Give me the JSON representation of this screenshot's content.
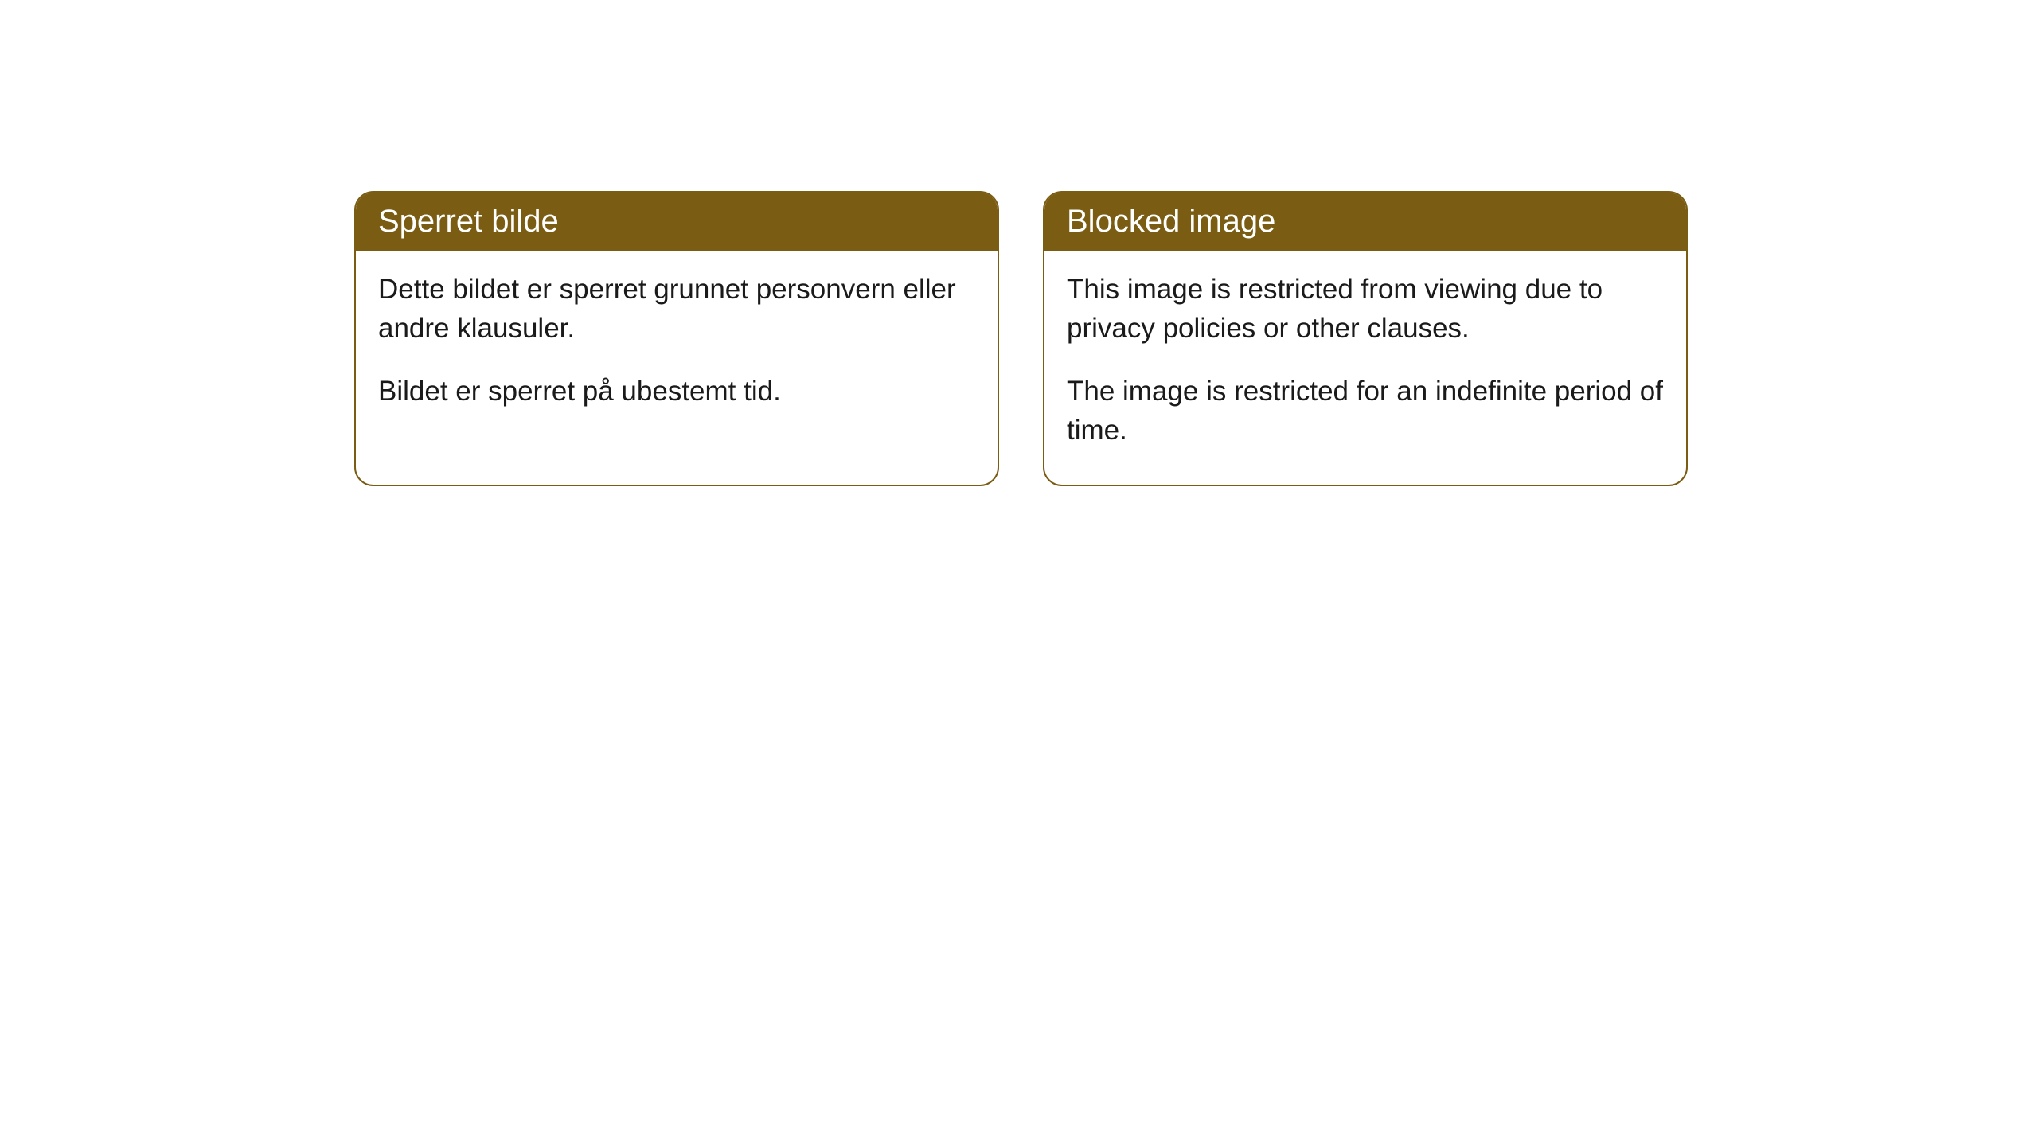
{
  "cards": [
    {
      "title": "Sperret bilde",
      "paragraph1": "Dette bildet er sperret grunnet personvern eller andre klausuler.",
      "paragraph2": "Bildet er sperret på ubestemt tid."
    },
    {
      "title": "Blocked image",
      "paragraph1": "This image is restricted from viewing due to privacy policies or other clauses.",
      "paragraph2": "The image is restricted for an indefinite period of time."
    }
  ],
  "styling": {
    "header_background": "#7a5c13",
    "header_text_color": "#ffffff",
    "border_color": "#7a5c13",
    "body_background": "#ffffff",
    "body_text_color": "#1a1a1a",
    "border_radius": 24,
    "title_fontsize": 40,
    "body_fontsize": 35
  }
}
